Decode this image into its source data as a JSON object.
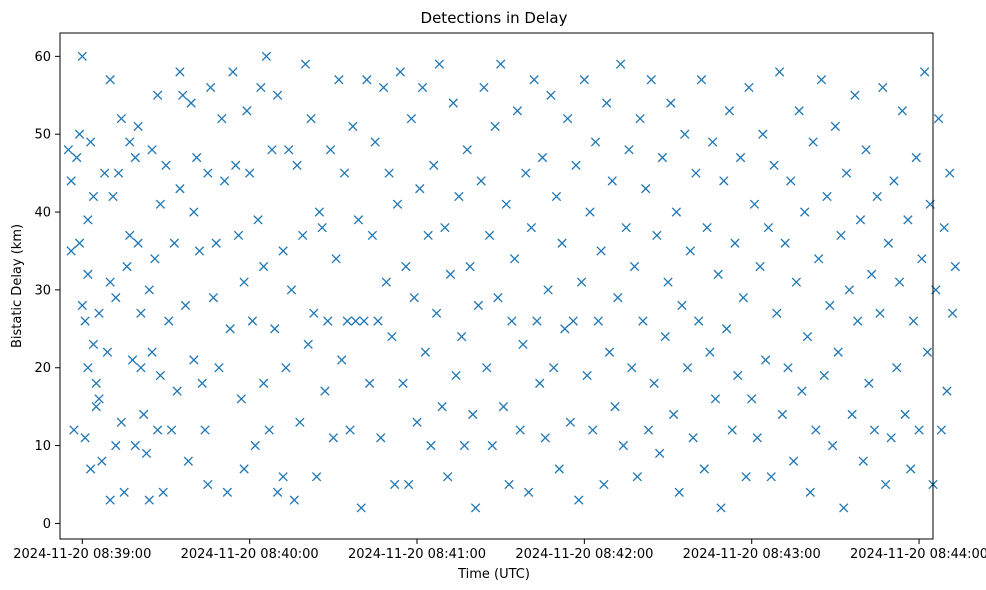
{
  "chart_data": {
    "type": "scatter",
    "title": "Detections in Delay",
    "xlabel": "Time (UTC)",
    "ylabel": "Bistatic Delay (km)",
    "marker": "x",
    "color": "#1f77b4",
    "grid": false,
    "legend": "none",
    "xlim": [
      "2024-11-20 08:38:52",
      "2024-11-20 08:44:05"
    ],
    "ylim": [
      -2,
      63
    ],
    "xticks": [
      "2024-11-20 08:39:00",
      "2024-11-20 08:40:00",
      "2024-11-20 08:41:00",
      "2024-11-20 08:42:00",
      "2024-11-20 08:43:00",
      "2024-11-20 08:44:00"
    ],
    "yticks": [
      "0",
      "10",
      "20",
      "30",
      "40",
      "50",
      "60"
    ],
    "time_base": "2024-11-20 08:39:00",
    "x_unit": "seconds",
    "points": [
      [
        -5,
        48
      ],
      [
        -4,
        44
      ],
      [
        -4,
        35
      ],
      [
        -3,
        12
      ],
      [
        -2,
        47
      ],
      [
        -1,
        50
      ],
      [
        -1,
        36
      ],
      [
        0,
        60
      ],
      [
        0,
        28
      ],
      [
        1,
        26
      ],
      [
        1,
        11
      ],
      [
        2,
        39
      ],
      [
        2,
        32
      ],
      [
        2,
        20
      ],
      [
        3,
        49
      ],
      [
        3,
        7
      ],
      [
        4,
        42
      ],
      [
        4,
        23
      ],
      [
        5,
        18
      ],
      [
        5,
        15
      ],
      [
        6,
        27
      ],
      [
        6,
        16
      ],
      [
        7,
        8
      ],
      [
        8,
        45
      ],
      [
        9,
        22
      ],
      [
        10,
        57
      ],
      [
        10,
        31
      ],
      [
        10,
        3
      ],
      [
        11,
        42
      ],
      [
        12,
        29
      ],
      [
        12,
        10
      ],
      [
        13,
        45
      ],
      [
        14,
        52
      ],
      [
        14,
        13
      ],
      [
        15,
        4
      ],
      [
        16,
        33
      ],
      [
        17,
        49
      ],
      [
        17,
        37
      ],
      [
        18,
        21
      ],
      [
        19,
        47
      ],
      [
        19,
        10
      ],
      [
        20,
        51
      ],
      [
        20,
        36
      ],
      [
        21,
        27
      ],
      [
        21,
        20
      ],
      [
        22,
        14
      ],
      [
        23,
        9
      ],
      [
        24,
        30
      ],
      [
        24,
        3
      ],
      [
        25,
        48
      ],
      [
        25,
        22
      ],
      [
        26,
        34
      ],
      [
        27,
        55
      ],
      [
        27,
        12
      ],
      [
        28,
        41
      ],
      [
        28,
        19
      ],
      [
        29,
        4
      ],
      [
        30,
        46
      ],
      [
        31,
        26
      ],
      [
        32,
        12
      ],
      [
        33,
        36
      ],
      [
        34,
        17
      ],
      [
        35,
        58
      ],
      [
        35,
        43
      ],
      [
        36,
        55
      ],
      [
        37,
        28
      ],
      [
        38,
        8
      ],
      [
        39,
        54
      ],
      [
        40,
        40
      ],
      [
        40,
        21
      ],
      [
        41,
        47
      ],
      [
        42,
        35
      ],
      [
        43,
        18
      ],
      [
        44,
        12
      ],
      [
        45,
        45
      ],
      [
        45,
        5
      ],
      [
        46,
        56
      ],
      [
        47,
        29
      ],
      [
        48,
        36
      ],
      [
        49,
        20
      ],
      [
        50,
        52
      ],
      [
        51,
        44
      ],
      [
        52,
        4
      ],
      [
        53,
        25
      ],
      [
        54,
        58
      ],
      [
        55,
        46
      ],
      [
        56,
        37
      ],
      [
        57,
        16
      ],
      [
        58,
        31
      ],
      [
        58,
        7
      ],
      [
        59,
        53
      ],
      [
        60,
        45
      ],
      [
        61,
        26
      ],
      [
        62,
        10
      ],
      [
        63,
        39
      ],
      [
        64,
        56
      ],
      [
        65,
        33
      ],
      [
        65,
        18
      ],
      [
        66,
        60
      ],
      [
        67,
        12
      ],
      [
        68,
        48
      ],
      [
        69,
        25
      ],
      [
        70,
        55
      ],
      [
        70,
        4
      ],
      [
        72,
        6
      ],
      [
        72,
        35
      ],
      [
        73,
        20
      ],
      [
        74,
        48
      ],
      [
        75,
        30
      ],
      [
        76,
        3
      ],
      [
        77,
        46
      ],
      [
        78,
        13
      ],
      [
        79,
        37
      ],
      [
        80,
        59
      ],
      [
        81,
        23
      ],
      [
        82,
        52
      ],
      [
        83,
        27
      ],
      [
        84,
        6
      ],
      [
        85,
        40
      ],
      [
        86,
        38
      ],
      [
        87,
        17
      ],
      [
        88,
        26
      ],
      [
        89,
        48
      ],
      [
        90,
        11
      ],
      [
        91,
        34
      ],
      [
        92,
        57
      ],
      [
        93,
        21
      ],
      [
        94,
        45
      ],
      [
        95,
        26
      ],
      [
        96,
        12
      ],
      [
        97,
        51
      ],
      [
        98,
        26
      ],
      [
        99,
        39
      ],
      [
        100,
        2
      ],
      [
        101,
        26
      ],
      [
        102,
        57
      ],
      [
        103,
        18
      ],
      [
        104,
        37
      ],
      [
        105,
        49
      ],
      [
        106,
        26
      ],
      [
        107,
        11
      ],
      [
        108,
        56
      ],
      [
        109,
        31
      ],
      [
        110,
        45
      ],
      [
        111,
        24
      ],
      [
        112,
        5
      ],
      [
        113,
        41
      ],
      [
        114,
        58
      ],
      [
        115,
        18
      ],
      [
        116,
        33
      ],
      [
        117,
        5
      ],
      [
        118,
        52
      ],
      [
        119,
        29
      ],
      [
        120,
        13
      ],
      [
        121,
        43
      ],
      [
        122,
        56
      ],
      [
        123,
        22
      ],
      [
        124,
        37
      ],
      [
        125,
        10
      ],
      [
        126,
        46
      ],
      [
        127,
        27
      ],
      [
        128,
        59
      ],
      [
        129,
        15
      ],
      [
        130,
        38
      ],
      [
        131,
        6
      ],
      [
        132,
        32
      ],
      [
        133,
        54
      ],
      [
        134,
        19
      ],
      [
        135,
        42
      ],
      [
        136,
        24
      ],
      [
        137,
        10
      ],
      [
        138,
        48
      ],
      [
        139,
        33
      ],
      [
        140,
        14
      ],
      [
        141,
        2
      ],
      [
        142,
        28
      ],
      [
        143,
        44
      ],
      [
        144,
        56
      ],
      [
        145,
        20
      ],
      [
        146,
        37
      ],
      [
        147,
        10
      ],
      [
        148,
        51
      ],
      [
        149,
        29
      ],
      [
        150,
        59
      ],
      [
        151,
        15
      ],
      [
        152,
        41
      ],
      [
        153,
        5
      ],
      [
        154,
        26
      ],
      [
        155,
        34
      ],
      [
        156,
        53
      ],
      [
        157,
        12
      ],
      [
        158,
        23
      ],
      [
        159,
        45
      ],
      [
        160,
        4
      ],
      [
        161,
        38
      ],
      [
        162,
        57
      ],
      [
        163,
        26
      ],
      [
        164,
        18
      ],
      [
        165,
        47
      ],
      [
        166,
        11
      ],
      [
        167,
        30
      ],
      [
        168,
        55
      ],
      [
        169,
        20
      ],
      [
        170,
        42
      ],
      [
        171,
        7
      ],
      [
        172,
        36
      ],
      [
        173,
        25
      ],
      [
        174,
        52
      ],
      [
        175,
        13
      ],
      [
        176,
        26
      ],
      [
        177,
        46
      ],
      [
        178,
        3
      ],
      [
        179,
        31
      ],
      [
        180,
        57
      ],
      [
        181,
        19
      ],
      [
        182,
        40
      ],
      [
        183,
        12
      ],
      [
        184,
        49
      ],
      [
        185,
        26
      ],
      [
        186,
        35
      ],
      [
        187,
        5
      ],
      [
        188,
        54
      ],
      [
        189,
        22
      ],
      [
        190,
        44
      ],
      [
        191,
        15
      ],
      [
        192,
        29
      ],
      [
        193,
        59
      ],
      [
        194,
        10
      ],
      [
        195,
        38
      ],
      [
        196,
        48
      ],
      [
        197,
        20
      ],
      [
        198,
        33
      ],
      [
        199,
        6
      ],
      [
        200,
        52
      ],
      [
        201,
        26
      ],
      [
        202,
        43
      ],
      [
        203,
        12
      ],
      [
        204,
        57
      ],
      [
        205,
        18
      ],
      [
        206,
        37
      ],
      [
        207,
        9
      ],
      [
        208,
        47
      ],
      [
        209,
        24
      ],
      [
        210,
        31
      ],
      [
        211,
        54
      ],
      [
        212,
        14
      ],
      [
        213,
        40
      ],
      [
        214,
        4
      ],
      [
        215,
        28
      ],
      [
        216,
        50
      ],
      [
        217,
        20
      ],
      [
        218,
        35
      ],
      [
        219,
        11
      ],
      [
        220,
        45
      ],
      [
        221,
        26
      ],
      [
        222,
        57
      ],
      [
        223,
        7
      ],
      [
        224,
        38
      ],
      [
        225,
        22
      ],
      [
        226,
        49
      ],
      [
        227,
        16
      ],
      [
        228,
        32
      ],
      [
        229,
        2
      ],
      [
        230,
        44
      ],
      [
        231,
        25
      ],
      [
        232,
        53
      ],
      [
        233,
        12
      ],
      [
        234,
        36
      ],
      [
        235,
        19
      ],
      [
        236,
        47
      ],
      [
        237,
        29
      ],
      [
        238,
        6
      ],
      [
        239,
        56
      ],
      [
        240,
        16
      ],
      [
        241,
        41
      ],
      [
        242,
        11
      ],
      [
        243,
        33
      ],
      [
        244,
        50
      ],
      [
        245,
        21
      ],
      [
        246,
        38
      ],
      [
        247,
        6
      ],
      [
        248,
        46
      ],
      [
        249,
        27
      ],
      [
        250,
        58
      ],
      [
        251,
        14
      ],
      [
        252,
        36
      ],
      [
        253,
        20
      ],
      [
        254,
        44
      ],
      [
        255,
        8
      ],
      [
        256,
        31
      ],
      [
        257,
        53
      ],
      [
        258,
        17
      ],
      [
        259,
        40
      ],
      [
        260,
        24
      ],
      [
        261,
        4
      ],
      [
        262,
        49
      ],
      [
        263,
        12
      ],
      [
        264,
        34
      ],
      [
        265,
        57
      ],
      [
        266,
        19
      ],
      [
        267,
        42
      ],
      [
        268,
        28
      ],
      [
        269,
        10
      ],
      [
        270,
        51
      ],
      [
        271,
        22
      ],
      [
        272,
        37
      ],
      [
        273,
        2
      ],
      [
        274,
        45
      ],
      [
        275,
        30
      ],
      [
        276,
        14
      ],
      [
        277,
        55
      ],
      [
        278,
        26
      ],
      [
        279,
        39
      ],
      [
        280,
        8
      ],
      [
        281,
        48
      ],
      [
        282,
        18
      ],
      [
        283,
        32
      ],
      [
        284,
        12
      ],
      [
        285,
        42
      ],
      [
        286,
        27
      ],
      [
        287,
        56
      ],
      [
        288,
        5
      ],
      [
        289,
        36
      ],
      [
        290,
        11
      ],
      [
        291,
        44
      ],
      [
        292,
        20
      ],
      [
        293,
        31
      ],
      [
        294,
        53
      ],
      [
        295,
        14
      ],
      [
        296,
        39
      ],
      [
        297,
        7
      ],
      [
        298,
        26
      ],
      [
        299,
        47
      ],
      [
        300,
        12
      ],
      [
        301,
        34
      ],
      [
        302,
        58
      ],
      [
        303,
        22
      ],
      [
        304,
        41
      ],
      [
        305,
        5
      ],
      [
        306,
        30
      ],
      [
        307,
        52
      ],
      [
        308,
        12
      ],
      [
        309,
        38
      ],
      [
        310,
        17
      ],
      [
        311,
        45
      ],
      [
        312,
        27
      ],
      [
        313,
        33
      ]
    ]
  }
}
